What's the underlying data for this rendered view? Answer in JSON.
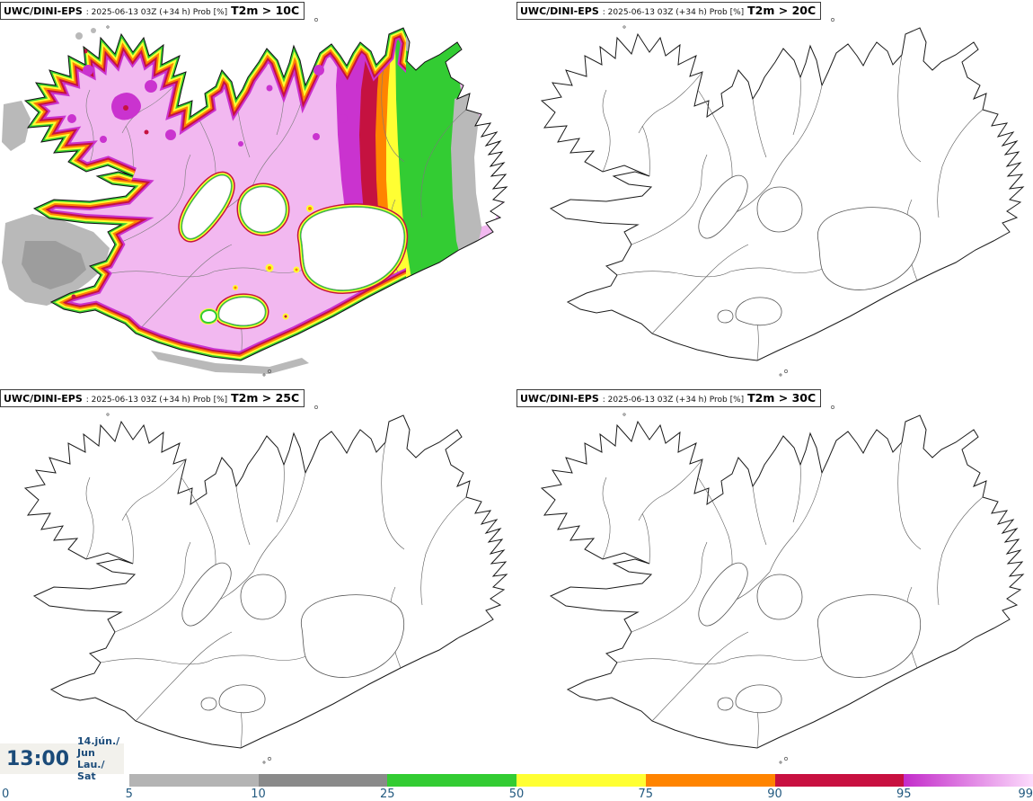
{
  "page": {
    "background": "#ffffff",
    "region": "Iceland"
  },
  "panels": [
    {
      "model": "UWC/DINI-EPS",
      "meta": ": 2025-06-13 03Z (+34 h) Prob [%]",
      "threshold": "T2m > 10C",
      "has_data": true
    },
    {
      "model": "UWC/DINI-EPS",
      "meta": ": 2025-06-13 03Z (+34 h) Prob [%]",
      "threshold": "T2m > 20C",
      "has_data": false
    },
    {
      "model": "UWC/DINI-EPS",
      "meta": ": 2025-06-13 03Z (+34 h) Prob [%]",
      "threshold": "T2m > 25C",
      "has_data": false
    },
    {
      "model": "UWC/DINI-EPS",
      "meta": ": 2025-06-13 03Z (+34 h) Prob [%]",
      "threshold": "T2m > 30C",
      "has_data": false
    }
  ],
  "clock": {
    "time": "13:00",
    "date_top": "14.jún./ Jun",
    "date_bottom": "Lau./ Sat"
  },
  "colorbar": {
    "ticks": [
      "0",
      "5",
      "10",
      "25",
      "50",
      "75",
      "90",
      "95",
      "99"
    ],
    "label_color": "#235a80",
    "segments": [
      {
        "range": "5-10",
        "color": "#b4b4b4"
      },
      {
        "range": "10-25",
        "color": "#8a8a8a"
      },
      {
        "range": "25-50",
        "color": "#33cc33"
      },
      {
        "range": "50-75",
        "color": "#ffff33"
      },
      {
        "range": "75-90",
        "color": "#ff8400"
      },
      {
        "range": "90-95",
        "color": "#c81040"
      },
      {
        "range": "95-99",
        "gradient": [
          "#c32bca",
          "#fcdbfc"
        ]
      }
    ]
  },
  "map_colors": {
    "prob_high_pink": "#f2b8f0",
    "magenta": "#ca33cf",
    "crimson": "#c51240",
    "orange": "#ff8400",
    "yellow": "#ffff33",
    "green": "#33cc33",
    "gray_light": "#b9b9b9",
    "gray_dark": "#9d9d9d",
    "coastline": "#111111"
  },
  "chart_data": {
    "type": "heatmap",
    "title": "UWC/DINI-EPS ensemble probability of 2 m temperature exceeding threshold",
    "unit": "Prob [%]",
    "run": "2025-06-13 03Z",
    "lead": "+34 h",
    "valid_time": "13:00",
    "valid_date": "14.jún./ Jun Lau./ Sat",
    "panels": [
      "T2m > 10C",
      "T2m > 20C",
      "T2m > 25C",
      "T2m > 30C"
    ],
    "scale_ticks": [
      0,
      5,
      10,
      25,
      50,
      75,
      90,
      95,
      99
    ],
    "notes": "Only the T2m > 10C panel shows non-zero probabilities (85-99% over most of Iceland, lower over glaciers, east coast and surrounding sea); the 20C, 25C and 30C panels are blank (0%)."
  }
}
